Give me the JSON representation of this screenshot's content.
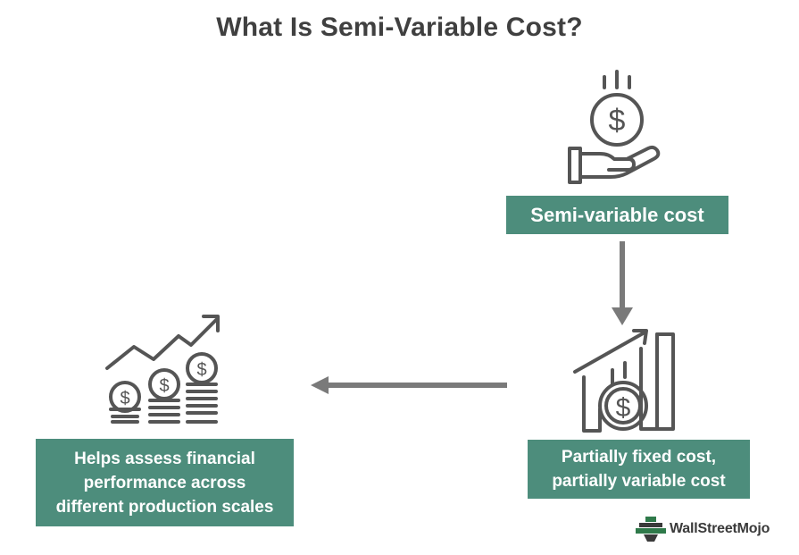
{
  "title": "What Is Semi-Variable Cost?",
  "nodes": {
    "semi_variable": "Semi-variable cost",
    "partial": [
      "Partially fixed cost,",
      "partially variable cost"
    ],
    "helps": [
      "Helps assess financial",
      "performance across",
      "different production scales"
    ]
  },
  "brand": "WallStreetMojo",
  "colors": {
    "box": "#4d8d7c",
    "arrow": "#7a7a7a",
    "icon": "#555555",
    "title": "#404040"
  }
}
